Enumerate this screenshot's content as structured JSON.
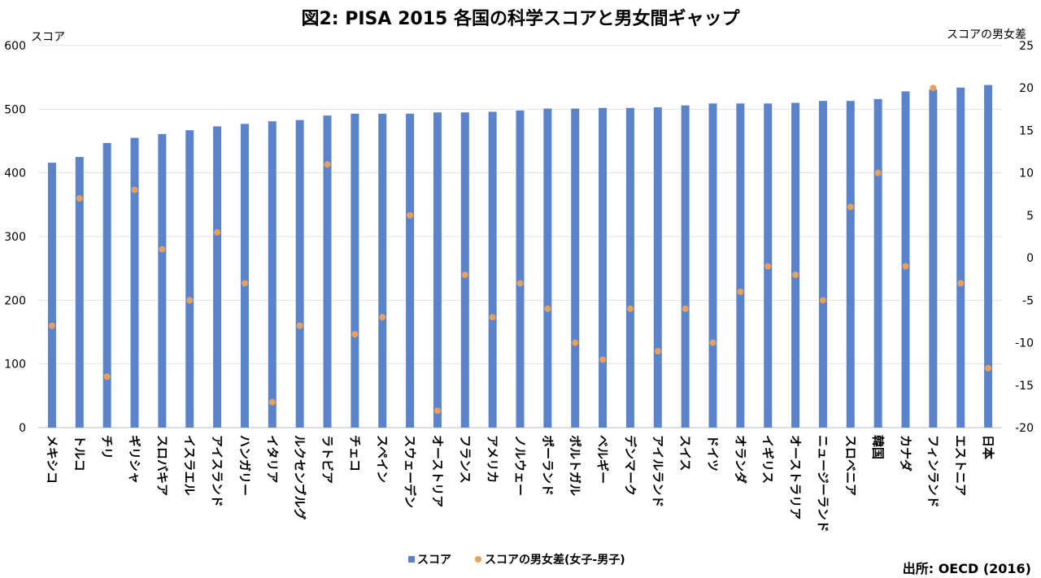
{
  "chart_data": {
    "type": "bar",
    "title": "図2: PISA 2015 各国の科学スコアと男女間ギャップ",
    "ylabel": "スコア",
    "y2label": "スコアの男女差",
    "ylim": [
      0,
      600
    ],
    "y2lim": [
      -20,
      25
    ],
    "yticks": [
      "0",
      "100",
      "200",
      "300",
      "400",
      "500",
      "600"
    ],
    "y2ticks": [
      "-20",
      "-15",
      "-10",
      "-5",
      "0",
      "5",
      "10",
      "15",
      "20",
      "25"
    ],
    "grid": true,
    "legend_position": "bottom",
    "categories": [
      "メキシコ",
      "トルコ",
      "チリ",
      "ギリシャ",
      "スロバキア",
      "イスラエル",
      "アイスランド",
      "ハンガリー",
      "イタリア",
      "ルクセンブルグ",
      "ラトビア",
      "チェコ",
      "スペイン",
      "スウェーデン",
      "オーストリア",
      "フランス",
      "アメリカ",
      "ノルウェー",
      "ポーランド",
      "ポルトガル",
      "ベルギー",
      "デンマーク",
      "アイルランド",
      "スイス",
      "ドイツ",
      "オランダ",
      "イギリス",
      "オーストラリア",
      "ニュージーランド",
      "スロベニア",
      "韓国",
      "カナダ",
      "フィンランド",
      "エストニア",
      "日本"
    ],
    "series": [
      {
        "name": "スコア",
        "type": "bar",
        "axis": "left",
        "color": "#5B83CC",
        "values": [
          416,
          425,
          447,
          455,
          461,
          467,
          473,
          477,
          481,
          483,
          490,
          493,
          493,
          493,
          495,
          495,
          496,
          498,
          501,
          501,
          502,
          502,
          503,
          506,
          509,
          509,
          509,
          510,
          513,
          513,
          516,
          528,
          531,
          534,
          538
        ]
      },
      {
        "name": "スコアの男女差(女子-男子)",
        "type": "scatter",
        "axis": "right",
        "color": "#E8A05C",
        "values": [
          -8,
          7,
          -14,
          8,
          1,
          -5,
          3,
          -3,
          -17,
          -8,
          11,
          -9,
          -7,
          5,
          -18,
          -2,
          -7,
          -3,
          -6,
          -10,
          -12,
          -6,
          -11,
          -6,
          -10,
          -4,
          -1,
          -2,
          -5,
          6,
          10,
          -1,
          20,
          -3,
          -13
        ]
      }
    ]
  },
  "source": "出所: OECD (2016)"
}
